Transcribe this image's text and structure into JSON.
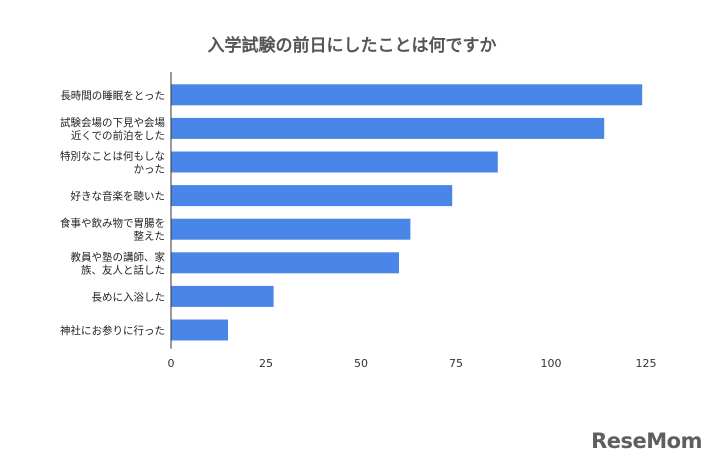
{
  "chart_data": {
    "type": "bar",
    "orientation": "horizontal",
    "title": "入学試験の前日にしたことは何ですか",
    "categories": [
      [
        "長時間の睡眠をとった"
      ],
      [
        "試験会場の下見や会場",
        "近くでの前泊をした"
      ],
      [
        "特別なことは何もしな",
        "かった"
      ],
      [
        "好きな音楽を聴いた"
      ],
      [
        "食事や飲み物で胃腸を",
        "整えた"
      ],
      [
        "教員や塾の講師、家",
        "族、友人と話した"
      ],
      [
        "長めに入浴した"
      ],
      [
        "神社にお参りに行った"
      ]
    ],
    "values": [
      124,
      114,
      86,
      74,
      63,
      60,
      27,
      15
    ],
    "xlim": [
      0,
      125
    ],
    "xticks": [
      0,
      25,
      50,
      75,
      100,
      125
    ],
    "grid": false,
    "legend": "none",
    "bar_color": "#4a86e8",
    "axis_color": "#333333"
  },
  "watermark": {
    "text": "ReseMom",
    "color": "#5f5f5f"
  }
}
